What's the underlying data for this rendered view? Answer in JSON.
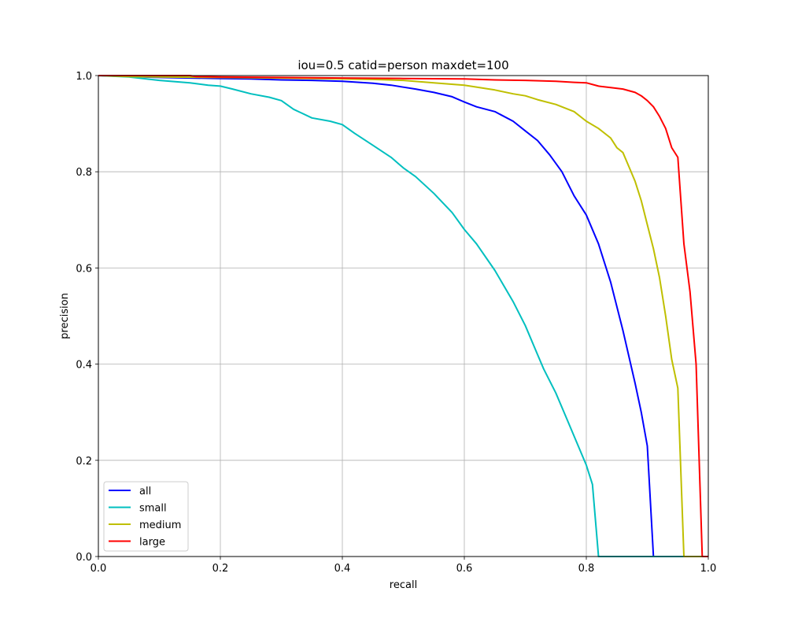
{
  "chart_data": {
    "type": "line",
    "title": "iou=0.5 catid=person maxdet=100",
    "xlabel": "recall",
    "ylabel": "precision",
    "xlim": [
      0.0,
      1.0
    ],
    "ylim": [
      0.0,
      1.0
    ],
    "xticks": [
      "0.0",
      "0.2",
      "0.4",
      "0.6",
      "0.8",
      "1.0"
    ],
    "yticks": [
      "0.0",
      "0.2",
      "0.4",
      "0.6",
      "0.8",
      "1.0"
    ],
    "grid": true,
    "legend_position": "lower-left",
    "series": [
      {
        "name": "all",
        "color": "#0000ff",
        "x": [
          0.0,
          0.05,
          0.1,
          0.15,
          0.2,
          0.25,
          0.3,
          0.35,
          0.4,
          0.45,
          0.48,
          0.5,
          0.52,
          0.55,
          0.58,
          0.6,
          0.62,
          0.65,
          0.68,
          0.7,
          0.72,
          0.74,
          0.76,
          0.78,
          0.8,
          0.82,
          0.84,
          0.86,
          0.88,
          0.89,
          0.9,
          0.91,
          0.92,
          0.95,
          1.0
        ],
        "y": [
          1.0,
          0.998,
          0.996,
          0.995,
          0.994,
          0.993,
          0.991,
          0.99,
          0.988,
          0.984,
          0.98,
          0.976,
          0.972,
          0.965,
          0.956,
          0.945,
          0.935,
          0.925,
          0.905,
          0.885,
          0.865,
          0.835,
          0.8,
          0.75,
          0.71,
          0.65,
          0.57,
          0.47,
          0.36,
          0.3,
          0.23,
          0.0,
          0.0,
          0.0,
          0.0
        ]
      },
      {
        "name": "small",
        "color": "#00bfbf",
        "x": [
          0.0,
          0.05,
          0.1,
          0.15,
          0.18,
          0.2,
          0.22,
          0.25,
          0.28,
          0.3,
          0.32,
          0.35,
          0.38,
          0.4,
          0.42,
          0.45,
          0.48,
          0.5,
          0.52,
          0.55,
          0.58,
          0.6,
          0.62,
          0.65,
          0.68,
          0.7,
          0.72,
          0.73,
          0.75,
          0.77,
          0.79,
          0.8,
          0.81,
          0.82,
          0.85,
          0.9,
          1.0
        ],
        "y": [
          1.0,
          0.997,
          0.99,
          0.985,
          0.98,
          0.978,
          0.972,
          0.962,
          0.955,
          0.948,
          0.93,
          0.912,
          0.905,
          0.898,
          0.88,
          0.855,
          0.83,
          0.808,
          0.79,
          0.755,
          0.715,
          0.68,
          0.65,
          0.595,
          0.53,
          0.48,
          0.42,
          0.39,
          0.34,
          0.28,
          0.22,
          0.19,
          0.15,
          0.0,
          0.0,
          0.0,
          0.0
        ]
      },
      {
        "name": "medium",
        "color": "#bfbf00",
        "x": [
          0.0,
          0.05,
          0.1,
          0.2,
          0.3,
          0.4,
          0.45,
          0.5,
          0.55,
          0.6,
          0.65,
          0.68,
          0.7,
          0.72,
          0.75,
          0.78,
          0.8,
          0.82,
          0.84,
          0.85,
          0.86,
          0.87,
          0.88,
          0.89,
          0.9,
          0.91,
          0.92,
          0.93,
          0.94,
          0.95,
          0.96,
          0.97,
          1.0
        ],
        "y": [
          1.0,
          0.998,
          0.997,
          0.996,
          0.995,
          0.993,
          0.992,
          0.99,
          0.985,
          0.98,
          0.97,
          0.962,
          0.958,
          0.95,
          0.94,
          0.925,
          0.905,
          0.89,
          0.87,
          0.85,
          0.84,
          0.81,
          0.78,
          0.74,
          0.69,
          0.64,
          0.58,
          0.5,
          0.41,
          0.35,
          0.0,
          0.0,
          0.0
        ]
      },
      {
        "name": "large",
        "color": "#ff0000",
        "x": [
          0.0,
          0.05,
          0.1,
          0.15,
          0.16,
          0.2,
          0.3,
          0.4,
          0.5,
          0.6,
          0.65,
          0.7,
          0.75,
          0.78,
          0.8,
          0.82,
          0.84,
          0.86,
          0.88,
          0.89,
          0.9,
          0.91,
          0.92,
          0.93,
          0.94,
          0.95,
          0.96,
          0.97,
          0.98,
          0.99,
          1.0
        ],
        "y": [
          1.0,
          1.0,
          1.0,
          1.0,
          0.998,
          0.997,
          0.996,
          0.995,
          0.994,
          0.993,
          0.991,
          0.99,
          0.988,
          0.986,
          0.985,
          0.978,
          0.975,
          0.972,
          0.965,
          0.958,
          0.948,
          0.935,
          0.915,
          0.89,
          0.85,
          0.83,
          0.65,
          0.55,
          0.4,
          0.0,
          0.0
        ]
      }
    ]
  }
}
